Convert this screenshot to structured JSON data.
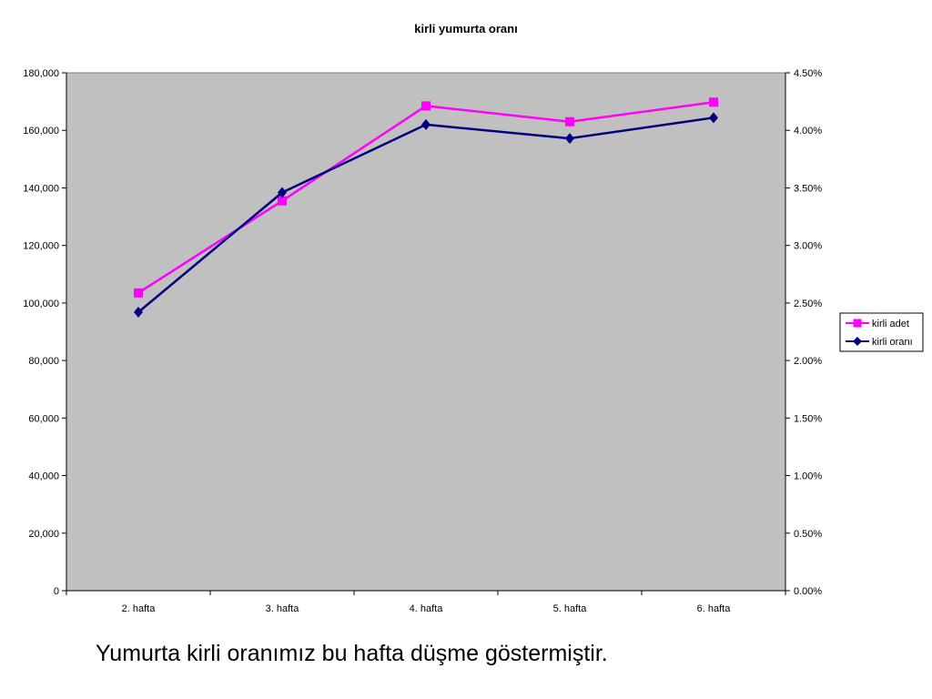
{
  "chart_data": {
    "type": "line",
    "title": "kirli yumurta oranı",
    "categories": [
      "2. hafta",
      "3. hafta",
      "4. hafta",
      "5. hafta",
      "6. hafta"
    ],
    "y_left": {
      "ticks": [
        "0",
        "20,000",
        "40,000",
        "60,000",
        "80,000",
        "100,000",
        "120,000",
        "140,000",
        "160,000",
        "180,000"
      ],
      "ylim": [
        0,
        180000
      ]
    },
    "y_right": {
      "ticks": [
        "0.00%",
        "0.50%",
        "1.00%",
        "1.50%",
        "2.00%",
        "2.50%",
        "3.00%",
        "3.50%",
        "4.00%",
        "4.50%"
      ],
      "ylim": [
        0,
        0.045
      ]
    },
    "series": [
      {
        "name": "kirli adet",
        "axis": "left",
        "marker": "square",
        "color": "#ff00ff",
        "values": [
          103500,
          135500,
          168500,
          163000,
          169800
        ]
      },
      {
        "name": "kirli oranı",
        "axis": "right",
        "marker": "diamond",
        "color": "#000080",
        "values": [
          0.0242,
          0.0346,
          0.0405,
          0.0393,
          0.0411
        ]
      }
    ],
    "grid": false,
    "plot_background": "#c0c0c0",
    "legend_position": "right"
  },
  "caption": "Yumurta kirli oranımız bu hafta düşme göstermiştir."
}
